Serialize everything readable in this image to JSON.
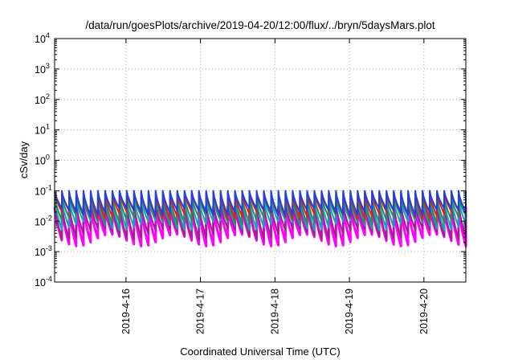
{
  "chart_data": {
    "type": "line",
    "title": "/data/run/goesPlots/archive/2019-04-20/12:00/flux/../bryn/5daysMars.plot",
    "xlabel": "Coordinated Universal Time (UTC)",
    "ylabel": "cSv/day",
    "y_scale": "log",
    "ylim": [
      0.0001,
      10000
    ],
    "y_ticks": [
      {
        "base": "10",
        "exp": "-4",
        "value": 0.0001
      },
      {
        "base": "10",
        "exp": "-3",
        "value": 0.001
      },
      {
        "base": "10",
        "exp": "-2",
        "value": 0.01
      },
      {
        "base": "10",
        "exp": "-1",
        "value": 0.1
      },
      {
        "base": "10",
        "exp": "0",
        "value": 1
      },
      {
        "base": "10",
        "exp": "1",
        "value": 10
      },
      {
        "base": "10",
        "exp": "2",
        "value": 100
      },
      {
        "base": "10",
        "exp": "3",
        "value": 1000
      },
      {
        "base": "10",
        "exp": "4",
        "value": 10000
      }
    ],
    "x_range": [
      "2019-04-15T01:00",
      "2019-04-20T13:30"
    ],
    "x_ticks": [
      "2019-4-16",
      "2019-4-17",
      "2019-4-18",
      "2019-4-19",
      "2019-4-20"
    ],
    "grid": true,
    "legend": "none",
    "cycles_per_day": 10.4,
    "series": [
      {
        "color": "#ff00ff",
        "peak": 0.03,
        "trough": 0.0015
      },
      {
        "color": "#a0208c",
        "peak": 0.04,
        "trough": 0.0025
      },
      {
        "color": "#00b0b0",
        "peak": 0.055,
        "trough": 0.005
      },
      {
        "color": "#2e8b57",
        "peak": 0.07,
        "trough": 0.008
      },
      {
        "color": "#e0201a",
        "peak": 0.09,
        "trough": 0.012
      },
      {
        "color": "#2040e0",
        "peak": 0.1,
        "trough": 0.015
      }
    ]
  }
}
